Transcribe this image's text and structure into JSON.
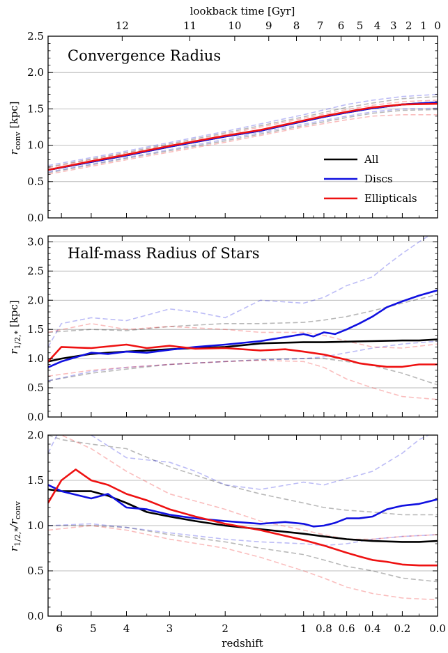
{
  "top_axis_label": "lookback time [Gyr]",
  "x_axis_label": "redshift",
  "colors": {
    "all": "#000000",
    "discs": "#1010e0",
    "ellipticals": "#ee1111",
    "grid": "#a8a8a8"
  },
  "legend": [
    "All",
    "Discs",
    "Ellipticals"
  ],
  "chart_data": [
    {
      "type": "line",
      "title": "Convergence Radius",
      "ylabel": "r_conv [kpc]",
      "ylabel_main": "r",
      "ylabel_sub": "conv",
      "ylabel_unit": "[kpc]",
      "ylim": [
        0.0,
        2.5
      ],
      "yticks": [
        "0.0",
        "0.5",
        "1.0",
        "1.5",
        "2.0",
        "2.5"
      ],
      "xlabel": "redshift",
      "xticks": [
        "6",
        "5",
        "4",
        "3",
        "2",
        "1",
        "0.8",
        "0.6",
        "0.4",
        "0.2",
        "0.0"
      ],
      "top_ticks": [
        "12",
        "11",
        "10",
        "9",
        "8",
        "7",
        "6",
        "5",
        "4",
        "3",
        "2",
        "1",
        "0"
      ],
      "grid": true,
      "legend_position": "lower-right",
      "series": [
        {
          "name": "All",
          "role": "median",
          "x": [
            6.5,
            5,
            4,
            3,
            2,
            1.5,
            1,
            0.8,
            0.6,
            0.4,
            0.2,
            0.0
          ],
          "y": [
            0.66,
            0.77,
            0.86,
            0.98,
            1.12,
            1.2,
            1.33,
            1.39,
            1.45,
            1.51,
            1.56,
            1.59
          ]
        },
        {
          "name": "Discs",
          "role": "median",
          "x": [
            6.5,
            5,
            4,
            3,
            2,
            1.5,
            1,
            0.8,
            0.6,
            0.4,
            0.2,
            0.0
          ],
          "y": [
            0.66,
            0.77,
            0.86,
            0.98,
            1.12,
            1.2,
            1.33,
            1.39,
            1.45,
            1.51,
            1.56,
            1.59
          ]
        },
        {
          "name": "Ellipticals",
          "role": "median",
          "x": [
            6.5,
            5,
            4,
            3,
            2,
            1.5,
            1,
            0.8,
            0.6,
            0.4,
            0.2,
            0.0
          ],
          "y": [
            0.66,
            0.78,
            0.87,
            0.99,
            1.13,
            1.21,
            1.34,
            1.4,
            1.46,
            1.52,
            1.56,
            1.57
          ]
        },
        {
          "role": "scatter",
          "color": "all",
          "x": [
            6.5,
            4,
            2,
            1,
            0.6,
            0.4,
            0.2,
            0.0
          ],
          "y": [
            0.7,
            0.9,
            1.17,
            1.39,
            1.52,
            1.58,
            1.64,
            1.67
          ]
        },
        {
          "role": "scatter",
          "color": "all",
          "x": [
            6.5,
            4,
            2,
            1,
            0.6,
            0.4,
            0.2,
            0.0
          ],
          "y": [
            0.62,
            0.82,
            1.06,
            1.27,
            1.38,
            1.44,
            1.48,
            1.49
          ]
        },
        {
          "role": "scatter",
          "color": "discs",
          "x": [
            6.5,
            4,
            2,
            1,
            0.6,
            0.4,
            0.2,
            0.0
          ],
          "y": [
            0.72,
            0.92,
            1.19,
            1.42,
            1.56,
            1.62,
            1.67,
            1.7
          ]
        },
        {
          "role": "scatter",
          "color": "discs",
          "x": [
            6.5,
            4,
            2,
            1,
            0.6,
            0.4,
            0.2,
            0.0
          ],
          "y": [
            0.63,
            0.83,
            1.08,
            1.29,
            1.4,
            1.46,
            1.5,
            1.51
          ]
        },
        {
          "role": "scatter",
          "color": "ellipticals",
          "x": [
            6.5,
            4,
            2,
            1,
            0.6,
            0.4,
            0.2,
            0.0
          ],
          "y": [
            0.69,
            0.89,
            1.15,
            1.37,
            1.49,
            1.55,
            1.6,
            1.62
          ]
        },
        {
          "role": "scatter",
          "color": "ellipticals",
          "x": [
            6.5,
            4,
            2,
            1,
            0.6,
            0.4,
            0.2,
            0.0
          ],
          "y": [
            0.6,
            0.8,
            1.04,
            1.25,
            1.35,
            1.4,
            1.42,
            1.42
          ]
        }
      ]
    },
    {
      "type": "line",
      "title": "Half-mass Radius of Stars",
      "ylabel": "r_1/2,* [kpc]",
      "ylabel_main": "r",
      "ylabel_sub": "1/2,*",
      "ylabel_unit": "[kpc]",
      "ylim": [
        0.0,
        3.1
      ],
      "yticks": [
        "0.0",
        "0.5",
        "1.0",
        "1.5",
        "2.0",
        "2.5",
        "3.0"
      ],
      "xlabel": "redshift",
      "grid": true,
      "series": [
        {
          "name": "All",
          "role": "median",
          "x": [
            6.5,
            6,
            5,
            4.5,
            4,
            3.5,
            3,
            2.5,
            2,
            1.5,
            1,
            0.8,
            0.6,
            0.4,
            0.2,
            0.1,
            0.0
          ],
          "y": [
            0.95,
            1.0,
            1.08,
            1.1,
            1.12,
            1.14,
            1.16,
            1.18,
            1.2,
            1.26,
            1.28,
            1.28,
            1.29,
            1.3,
            1.31,
            1.31,
            1.33
          ]
        },
        {
          "name": "Discs",
          "role": "median",
          "x": [
            6.5,
            6,
            5,
            4.5,
            4,
            3.5,
            3,
            2.5,
            2,
            1.5,
            1,
            0.9,
            0.8,
            0.7,
            0.6,
            0.5,
            0.4,
            0.3,
            0.2,
            0.1,
            0.0
          ],
          "y": [
            0.85,
            0.95,
            1.1,
            1.08,
            1.12,
            1.1,
            1.15,
            1.2,
            1.24,
            1.3,
            1.42,
            1.38,
            1.45,
            1.42,
            1.5,
            1.6,
            1.72,
            1.88,
            1.98,
            2.08,
            2.17
          ]
        },
        {
          "name": "Ellipticals",
          "role": "median",
          "x": [
            6.5,
            6,
            5,
            4,
            3.5,
            3,
            2.5,
            2,
            1.5,
            1.2,
            1,
            0.8,
            0.6,
            0.5,
            0.4,
            0.3,
            0.2,
            0.1,
            0.0
          ],
          "y": [
            0.95,
            1.2,
            1.18,
            1.24,
            1.18,
            1.22,
            1.17,
            1.18,
            1.14,
            1.16,
            1.12,
            1.07,
            0.98,
            0.92,
            0.89,
            0.86,
            0.86,
            0.9,
            0.9
          ]
        },
        {
          "role": "scatter",
          "color": "all",
          "x": [
            6.5,
            5,
            4,
            3,
            2,
            1.5,
            1,
            0.8,
            0.6,
            0.4,
            0.2,
            0.0
          ],
          "y": [
            1.45,
            1.5,
            1.48,
            1.55,
            1.6,
            1.6,
            1.62,
            1.66,
            1.72,
            1.82,
            1.95,
            2.1
          ]
        },
        {
          "role": "scatter",
          "color": "all",
          "x": [
            6.5,
            5,
            4,
            3,
            2,
            1.5,
            1,
            0.8,
            0.6,
            0.4,
            0.2,
            0.0
          ],
          "y": [
            0.62,
            0.75,
            0.82,
            0.9,
            0.95,
            0.98,
            1.0,
            1.0,
            0.95,
            0.88,
            0.75,
            0.55
          ]
        },
        {
          "role": "scatter",
          "color": "discs",
          "x": [
            6.5,
            6,
            5,
            4,
            3,
            2.5,
            2,
            1.5,
            1,
            0.8,
            0.6,
            0.4,
            0.3,
            0.2,
            0.1,
            0.0
          ],
          "y": [
            1.2,
            1.6,
            1.7,
            1.65,
            1.85,
            1.8,
            1.7,
            2.0,
            1.95,
            2.05,
            2.25,
            2.4,
            2.6,
            2.8,
            3.0,
            3.2
          ]
        },
        {
          "role": "scatter",
          "color": "discs",
          "x": [
            6.5,
            5,
            4,
            3,
            2,
            1.5,
            1,
            0.8,
            0.6,
            0.4,
            0.2,
            0.0
          ],
          "y": [
            0.62,
            0.78,
            0.85,
            0.9,
            0.95,
            0.98,
            1.0,
            1.03,
            1.1,
            1.18,
            1.25,
            1.3
          ]
        },
        {
          "role": "scatter",
          "color": "ellipticals",
          "x": [
            6.5,
            5,
            4,
            3,
            2,
            1.5,
            1,
            0.8,
            0.6,
            0.4,
            0.2,
            0.0
          ],
          "y": [
            1.45,
            1.6,
            1.5,
            1.55,
            1.5,
            1.45,
            1.45,
            1.4,
            1.3,
            1.2,
            1.18,
            1.25
          ]
        },
        {
          "role": "scatter",
          "color": "ellipticals",
          "x": [
            6.5,
            5,
            4,
            3,
            2,
            1.5,
            1,
            0.8,
            0.6,
            0.4,
            0.2,
            0.0
          ],
          "y": [
            0.7,
            0.8,
            0.85,
            0.9,
            0.95,
            0.97,
            0.95,
            0.85,
            0.65,
            0.5,
            0.35,
            0.3
          ]
        }
      ]
    },
    {
      "type": "line",
      "title": "",
      "ylabel": "r_1/2,* / r_conv",
      "ylabel_main": "r",
      "ylabel_sub": "1/2,*",
      "ylabel_div": "/r",
      "ylabel_sub2": "conv",
      "ylim": [
        0.0,
        2.0
      ],
      "yticks": [
        "0.0",
        "0.5",
        "1.0",
        "1.5",
        "2.0"
      ],
      "xlabel": "redshift",
      "grid": true,
      "series": [
        {
          "name": "All",
          "role": "median",
          "x": [
            6.5,
            6,
            5,
            4.5,
            4,
            3.5,
            3,
            2.5,
            2,
            1.5,
            1,
            0.8,
            0.6,
            0.4,
            0.2,
            0.1,
            0.0
          ],
          "y": [
            1.4,
            1.38,
            1.38,
            1.33,
            1.25,
            1.15,
            1.1,
            1.05,
            1.0,
            0.96,
            0.91,
            0.88,
            0.85,
            0.83,
            0.82,
            0.82,
            0.83
          ]
        },
        {
          "name": "Discs",
          "role": "median",
          "x": [
            6.5,
            6,
            5,
            4.5,
            4,
            3.5,
            3,
            2.5,
            2,
            1.5,
            1.2,
            1,
            0.9,
            0.8,
            0.7,
            0.6,
            0.5,
            0.4,
            0.3,
            0.2,
            0.1,
            0.0
          ],
          "y": [
            1.45,
            1.38,
            1.3,
            1.35,
            1.2,
            1.18,
            1.12,
            1.08,
            1.05,
            1.02,
            1.04,
            1.02,
            0.99,
            1.0,
            1.03,
            1.08,
            1.08,
            1.1,
            1.18,
            1.22,
            1.24,
            1.29
          ]
        },
        {
          "name": "Ellipticals",
          "role": "median",
          "x": [
            6.5,
            6,
            5.5,
            5,
            4.5,
            4,
            3.5,
            3,
            2.5,
            2,
            1.5,
            1,
            0.8,
            0.6,
            0.5,
            0.4,
            0.3,
            0.2,
            0.1,
            0.0
          ],
          "y": [
            1.25,
            1.5,
            1.62,
            1.5,
            1.45,
            1.35,
            1.28,
            1.18,
            1.1,
            1.02,
            0.95,
            0.84,
            0.78,
            0.7,
            0.66,
            0.62,
            0.6,
            0.57,
            0.56,
            0.56
          ]
        },
        {
          "role": "scatter",
          "color": "all",
          "x": [
            6.5,
            6,
            5,
            4,
            3,
            2,
            1.5,
            1,
            0.8,
            0.6,
            0.4,
            0.2,
            0.0
          ],
          "y": [
            2.0,
            1.95,
            1.9,
            1.85,
            1.65,
            1.45,
            1.35,
            1.25,
            1.2,
            1.17,
            1.15,
            1.12,
            1.12
          ]
        },
        {
          "role": "scatter",
          "color": "all",
          "x": [
            6.5,
            5,
            4,
            3,
            2,
            1.5,
            1,
            0.8,
            0.6,
            0.4,
            0.2,
            0.0
          ],
          "y": [
            1.0,
            1.0,
            0.98,
            0.9,
            0.82,
            0.75,
            0.68,
            0.62,
            0.55,
            0.5,
            0.42,
            0.38
          ]
        },
        {
          "role": "scatter",
          "color": "discs",
          "x": [
            6.5,
            6,
            5,
            4,
            3,
            2.5,
            2,
            1.5,
            1,
            0.8,
            0.6,
            0.4,
            0.2,
            0.1,
            0.0
          ],
          "y": [
            1.8,
            2.1,
            2.0,
            1.75,
            1.7,
            1.6,
            1.45,
            1.4,
            1.48,
            1.45,
            1.52,
            1.6,
            1.8,
            1.95,
            2.05
          ]
        },
        {
          "role": "scatter",
          "color": "discs",
          "x": [
            6.5,
            5,
            4,
            3,
            2,
            1.5,
            1,
            0.8,
            0.6,
            0.4,
            0.2,
            0.0
          ],
          "y": [
            1.0,
            1.02,
            0.98,
            0.92,
            0.85,
            0.82,
            0.8,
            0.78,
            0.8,
            0.85,
            0.88,
            0.9
          ]
        },
        {
          "role": "scatter",
          "color": "ellipticals",
          "x": [
            6.5,
            6,
            5,
            4,
            3,
            2,
            1.5,
            1,
            0.8,
            0.6,
            0.4,
            0.2,
            0.0
          ],
          "y": [
            2.05,
            2.0,
            1.85,
            1.6,
            1.35,
            1.18,
            1.05,
            0.95,
            0.9,
            0.85,
            0.85,
            0.88,
            0.9
          ]
        },
        {
          "role": "scatter",
          "color": "ellipticals",
          "x": [
            6.5,
            5,
            4,
            3,
            2,
            1.5,
            1,
            0.8,
            0.6,
            0.4,
            0.2,
            0.0
          ],
          "y": [
            0.95,
            1.0,
            0.95,
            0.85,
            0.75,
            0.65,
            0.5,
            0.42,
            0.32,
            0.25,
            0.2,
            0.18
          ]
        }
      ]
    }
  ]
}
